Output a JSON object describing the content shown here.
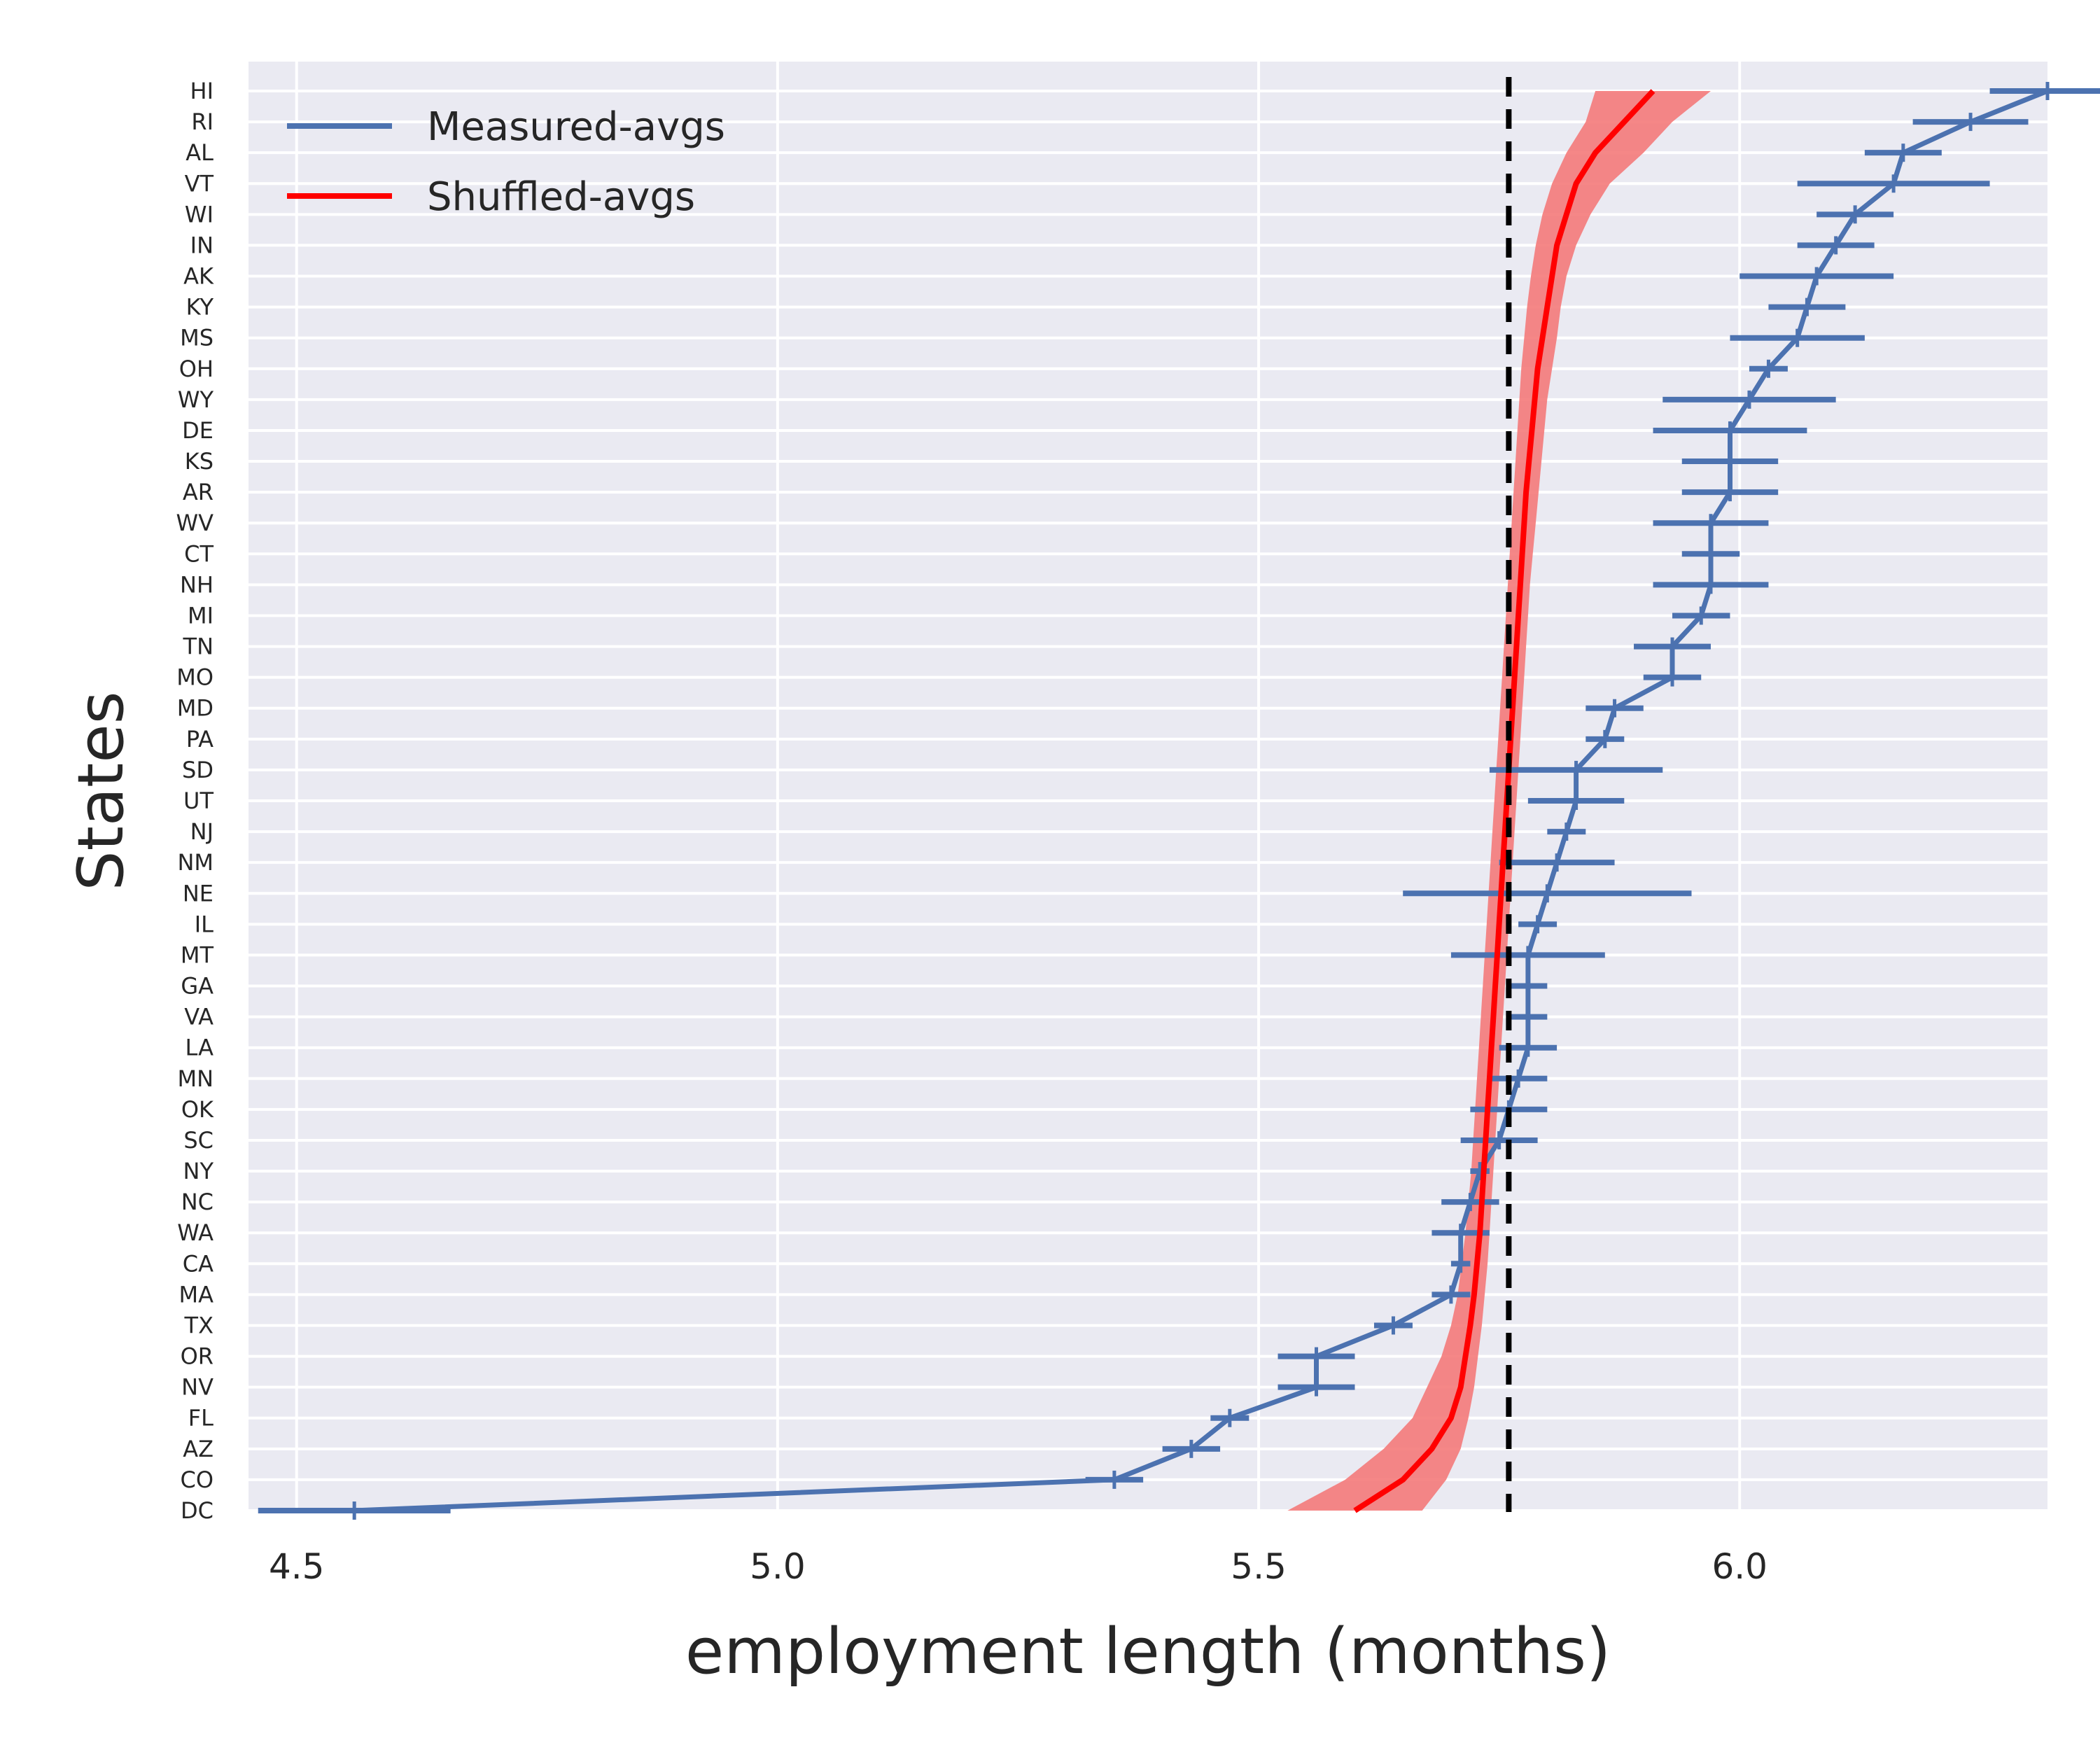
{
  "chart_data": {
    "type": "line",
    "xlabel": "employment length (months)",
    "ylabel": "States",
    "xlim": [
      4.45,
      6.32
    ],
    "x_ticks": [
      "4.5",
      "5.0",
      "5.5",
      "6.0"
    ],
    "grid": true,
    "legend_position": "top-left",
    "reference_line": {
      "x": 5.76,
      "style": "dashed",
      "color": "#000000"
    },
    "categories": [
      "HI",
      "RI",
      "AL",
      "VT",
      "WI",
      "IN",
      "AK",
      "KY",
      "MS",
      "OH",
      "WY",
      "DE",
      "KS",
      "AR",
      "WV",
      "CT",
      "NH",
      "MI",
      "TN",
      "MO",
      "MD",
      "PA",
      "SD",
      "UT",
      "NJ",
      "NM",
      "NE",
      "IL",
      "MT",
      "GA",
      "VA",
      "LA",
      "MN",
      "OK",
      "SC",
      "NY",
      "NC",
      "WA",
      "CA",
      "MA",
      "TX",
      "OR",
      "NV",
      "FL",
      "AZ",
      "CO",
      "DC"
    ],
    "series": [
      {
        "name": "Measured-avgs",
        "color": "#4c72b0",
        "values": [
          6.32,
          6.24,
          6.17,
          6.16,
          6.12,
          6.1,
          6.08,
          6.07,
          6.06,
          6.03,
          6.01,
          5.99,
          5.99,
          5.99,
          5.97,
          5.97,
          5.97,
          5.96,
          5.93,
          5.93,
          5.87,
          5.86,
          5.83,
          5.83,
          5.82,
          5.81,
          5.8,
          5.79,
          5.78,
          5.78,
          5.78,
          5.78,
          5.77,
          5.76,
          5.75,
          5.73,
          5.72,
          5.71,
          5.71,
          5.7,
          5.64,
          5.56,
          5.56,
          5.47,
          5.43,
          5.35,
          4.56
        ],
        "error": [
          0.06,
          0.06,
          0.04,
          0.1,
          0.04,
          0.04,
          0.08,
          0.04,
          0.07,
          0.02,
          0.09,
          0.08,
          0.05,
          0.05,
          0.06,
          0.03,
          0.06,
          0.03,
          0.04,
          0.03,
          0.03,
          0.02,
          0.09,
          0.05,
          0.02,
          0.06,
          0.15,
          0.02,
          0.08,
          0.02,
          0.02,
          0.03,
          0.03,
          0.04,
          0.04,
          0.01,
          0.03,
          0.03,
          0.01,
          0.02,
          0.02,
          0.04,
          0.04,
          0.02,
          0.03,
          0.03,
          0.1
        ]
      },
      {
        "name": "Shuffled-avgs",
        "color": "#ff0000",
        "band_color": "#f47a7a",
        "values": [
          5.91,
          5.88,
          5.85,
          5.83,
          5.82,
          5.81,
          5.805,
          5.8,
          5.795,
          5.79,
          5.787,
          5.784,
          5.781,
          5.778,
          5.776,
          5.774,
          5.772,
          5.77,
          5.768,
          5.766,
          5.764,
          5.762,
          5.76,
          5.758,
          5.756,
          5.754,
          5.752,
          5.75,
          5.748,
          5.746,
          5.744,
          5.742,
          5.74,
          5.738,
          5.736,
          5.734,
          5.732,
          5.73,
          5.727,
          5.724,
          5.72,
          5.715,
          5.71,
          5.7,
          5.68,
          5.65,
          5.6
        ],
        "lower": [
          5.85,
          5.84,
          5.82,
          5.805,
          5.795,
          5.788,
          5.783,
          5.779,
          5.776,
          5.773,
          5.771,
          5.769,
          5.767,
          5.765,
          5.763,
          5.761,
          5.759,
          5.757,
          5.755,
          5.753,
          5.751,
          5.749,
          5.747,
          5.745,
          5.743,
          5.741,
          5.739,
          5.737,
          5.735,
          5.733,
          5.731,
          5.729,
          5.727,
          5.725,
          5.723,
          5.721,
          5.718,
          5.715,
          5.711,
          5.707,
          5.7,
          5.69,
          5.675,
          5.66,
          5.63,
          5.59,
          5.53
        ],
        "upper": [
          5.97,
          5.93,
          5.9,
          5.865,
          5.845,
          5.83,
          5.82,
          5.814,
          5.81,
          5.805,
          5.8,
          5.797,
          5.794,
          5.791,
          5.788,
          5.785,
          5.782,
          5.78,
          5.778,
          5.776,
          5.774,
          5.772,
          5.77,
          5.768,
          5.766,
          5.764,
          5.762,
          5.76,
          5.758,
          5.756,
          5.754,
          5.752,
          5.75,
          5.748,
          5.746,
          5.744,
          5.742,
          5.74,
          5.738,
          5.735,
          5.732,
          5.728,
          5.724,
          5.718,
          5.71,
          5.695,
          5.67
        ]
      }
    ]
  }
}
